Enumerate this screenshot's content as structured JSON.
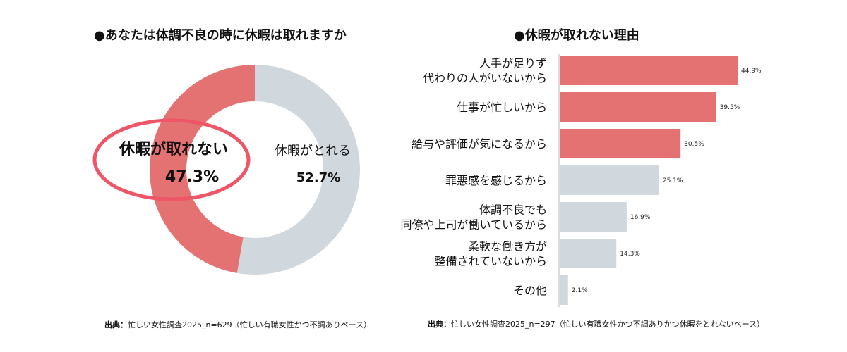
{
  "chart_data": [
    {
      "type": "pie",
      "title": "●あなたは体調不良の時に休暇は取れますか",
      "slices": [
        {
          "label": "休暇が取れない",
          "value": 47.3,
          "value_label": "47.3%",
          "color": "#E47272"
        },
        {
          "label": "休暇がとれる",
          "value": 52.7,
          "value_label": "52.7%",
          "color": "#D0D8DE"
        }
      ],
      "source_prefix": "出典：",
      "source_text": "忙しい女性調査2025_n=629（忙しい有職女性かつ不調ありベース）",
      "highlight_color": "#EE5566"
    },
    {
      "type": "bar",
      "orientation": "horizontal",
      "title": "●休暇が取れない理由",
      "categories": [
        [
          "人手が足りず",
          "代わりの人がいないから"
        ],
        [
          "仕事が忙しいから"
        ],
        [
          "給与や評価が気になるから"
        ],
        [
          "罪悪感を感じるから"
        ],
        [
          "体調不良でも",
          "同僚や上司が働いているから"
        ],
        [
          "柔軟な働き方が",
          "整備されていないから"
        ],
        [
          "その他"
        ]
      ],
      "values": [
        44.9,
        39.5,
        30.5,
        25.1,
        16.9,
        14.3,
        2.1
      ],
      "value_labels": [
        "44.9%",
        "39.5%",
        "30.5%",
        "25.1%",
        "16.9%",
        "14.3%",
        "2.1%"
      ],
      "highlighted_count": 3,
      "colors": {
        "highlight": "#E47272",
        "normal": "#D0D8DE",
        "axis": "#BBBBBB"
      },
      "source_prefix": "出典：",
      "source_text": "忙しい女性調査2025_n=297（忙しい有職女性かつ不調ありかつ休暇をとれないベース）"
    }
  ]
}
